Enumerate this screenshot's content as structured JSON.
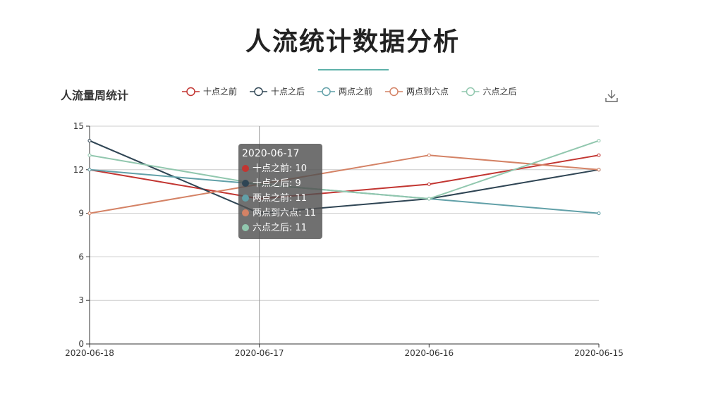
{
  "page_title": "人流统计数据分析",
  "chart_title": "人流量周统计",
  "toolbar": {
    "download_icon": "download-icon"
  },
  "colors": {
    "accent_underline": "#5fb2aa",
    "series": [
      "#c23531",
      "#2f4554",
      "#61a0a8",
      "#d48265",
      "#91c7ae"
    ]
  },
  "tooltip": {
    "date": "2020-06-17",
    "rows": [
      {
        "label": "十点之前: 10"
      },
      {
        "label": "十点之后: 9"
      },
      {
        "label": "两点之前: 11"
      },
      {
        "label": "两点到六点: 11"
      },
      {
        "label": "六点之后: 11"
      }
    ]
  },
  "chart_data": {
    "type": "line",
    "x": [
      "2020-06-18",
      "2020-06-17",
      "2020-06-16",
      "2020-06-15"
    ],
    "ylim": [
      0,
      15
    ],
    "yticks": [
      0,
      3,
      6,
      9,
      12,
      15
    ],
    "grid": true,
    "legend_position": "top",
    "highlighted_x": "2020-06-17",
    "series": [
      {
        "name": "十点之前",
        "values": [
          12,
          10,
          11,
          13
        ]
      },
      {
        "name": "十点之后",
        "values": [
          14,
          9,
          10,
          12
        ]
      },
      {
        "name": "两点之前",
        "values": [
          12,
          11,
          10,
          9
        ]
      },
      {
        "name": "两点到六点",
        "values": [
          9,
          11,
          13,
          12
        ]
      },
      {
        "name": "六点之后",
        "values": [
          13,
          11,
          10,
          14
        ]
      }
    ]
  }
}
